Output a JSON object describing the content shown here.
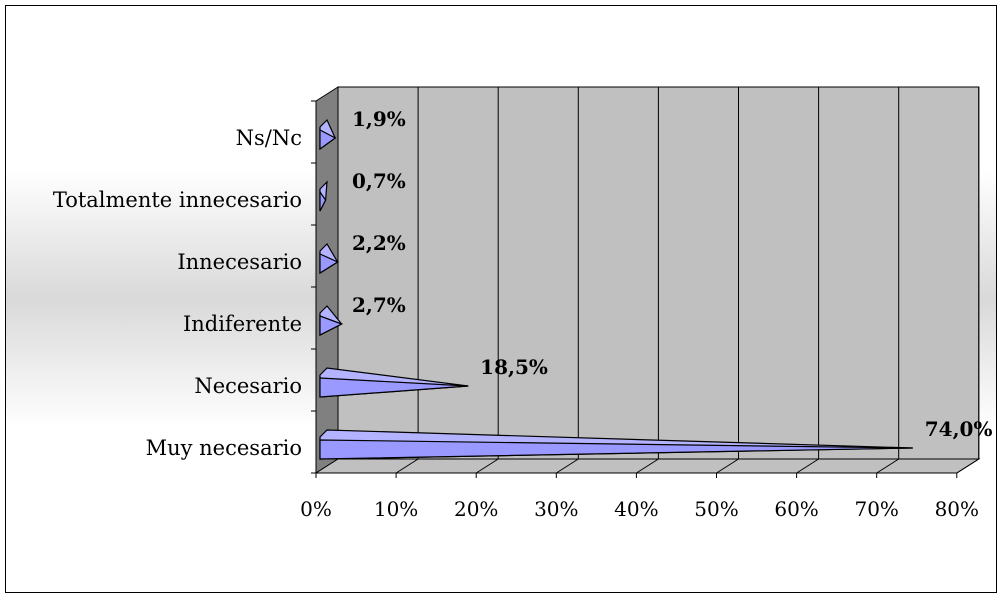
{
  "chart_data": {
    "type": "bar",
    "orientation": "horizontal",
    "style": "3d-cone",
    "categories": [
      "Muy necesario",
      "Necesario",
      "Indiferente",
      "Innecesario",
      "Totalmente innecesario",
      "Ns/Nc"
    ],
    "values": [
      74.0,
      18.5,
      2.7,
      2.2,
      0.7,
      1.9
    ],
    "data_labels": [
      "74,0%",
      "18,5%",
      "2,7%",
      "2,2%",
      "0,7%",
      "1,9%"
    ],
    "x_ticks": [
      "0%",
      "10%",
      "20%",
      "30%",
      "40%",
      "50%",
      "60%",
      "70%",
      "80%"
    ],
    "xlim": [
      0,
      80
    ],
    "grid": true,
    "legend": "none",
    "colors": {
      "bar_fill": "#9999ff",
      "bar_face": "#b3b3ff",
      "bar_edge": "#000000",
      "wall": "#c0c0c0",
      "side_wall": "#808080",
      "floor": "#c0c0c0"
    },
    "title": "",
    "xlabel": "",
    "ylabel": ""
  }
}
